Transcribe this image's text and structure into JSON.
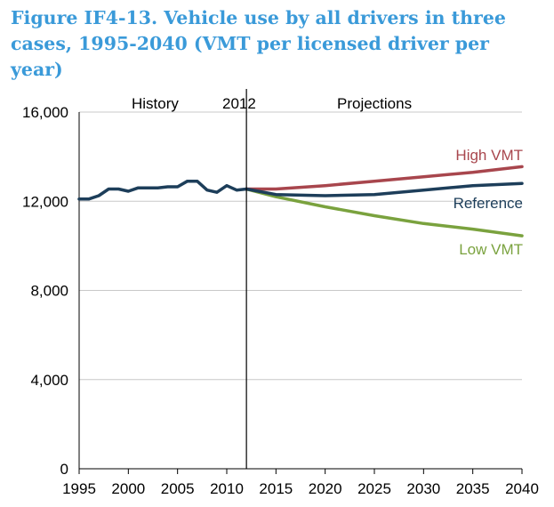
{
  "chart_data": {
    "type": "line",
    "title": "Figure IF4-13. Vehicle use by all drivers in three cases, 1995-2040 (VMT per licensed driver per year)",
    "xlim": [
      1995,
      2040
    ],
    "ylim": [
      0,
      16000
    ],
    "x_ticks": [
      "1995",
      "2000",
      "2005",
      "2010",
      "2015",
      "2020",
      "2025",
      "2030",
      "2035",
      "2040"
    ],
    "y_ticks": [
      "0",
      "4,000",
      "8,000",
      "12,000",
      "16,000"
    ],
    "grid": "horizontal",
    "divider": {
      "x": 2012,
      "label": "2012"
    },
    "regions": {
      "history": "History",
      "projections": "Projections"
    },
    "history": {
      "color": "#1d3e5a",
      "x": [
        1995,
        1996,
        1997,
        1998,
        1999,
        2000,
        2001,
        2002,
        2003,
        2004,
        2005,
        2006,
        2007,
        2008,
        2009,
        2010,
        2011,
        2012
      ],
      "y": [
        12100,
        12100,
        12250,
        12550,
        12550,
        12450,
        12600,
        12600,
        12600,
        12650,
        12650,
        12900,
        12900,
        12500,
        12400,
        12700,
        12500,
        12550
      ]
    },
    "series": [
      {
        "name": "High VMT",
        "color": "#a8464d",
        "x": [
          2012,
          2015,
          2020,
          2025,
          2030,
          2035,
          2040
        ],
        "y": [
          12550,
          12550,
          12700,
          12900,
          13100,
          13300,
          13550
        ]
      },
      {
        "name": "Reference",
        "color": "#1d3e5a",
        "x": [
          2012,
          2015,
          2020,
          2025,
          2030,
          2035,
          2040
        ],
        "y": [
          12550,
          12300,
          12250,
          12300,
          12500,
          12700,
          12800
        ]
      },
      {
        "name": "Low VMT",
        "color": "#7aa23e",
        "x": [
          2012,
          2015,
          2020,
          2025,
          2030,
          2035,
          2040
        ],
        "y": [
          12550,
          12200,
          11750,
          11350,
          11000,
          10750,
          10450
        ]
      }
    ]
  }
}
